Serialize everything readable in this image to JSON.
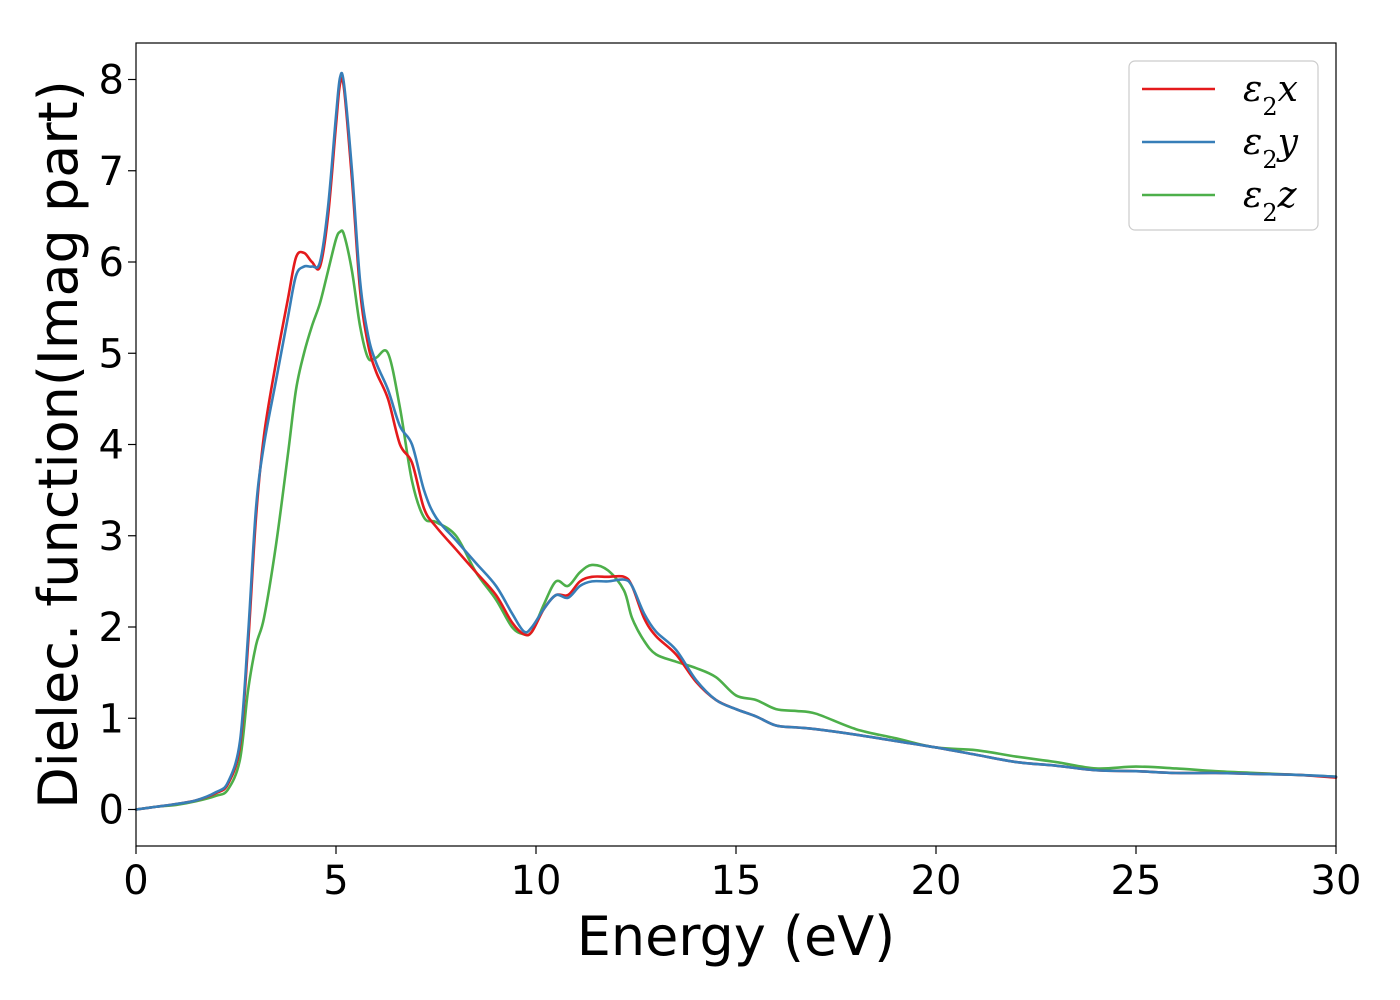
{
  "chart_data": {
    "type": "line",
    "title": "",
    "xlabel": "Energy (eV)",
    "ylabel": "Dielec. function(Imag part)",
    "xlim": [
      0,
      30
    ],
    "ylim": [
      -0.4,
      8.4
    ],
    "xticks": [
      0,
      5,
      10,
      15,
      20,
      25,
      30
    ],
    "yticks": [
      0,
      1,
      2,
      3,
      4,
      5,
      6,
      7,
      8
    ],
    "grid": false,
    "legend_position": "top-right",
    "series": [
      {
        "name": "ε2x",
        "legend_base": "ε",
        "legend_sub": "2",
        "legend_tail": "x",
        "color": "#e41a1c",
        "x": [
          0,
          0.5,
          1,
          1.5,
          2,
          2.3,
          2.6,
          2.8,
          3.0,
          3.2,
          3.5,
          3.8,
          4.0,
          4.2,
          4.4,
          4.6,
          4.8,
          5.0,
          5.1,
          5.2,
          5.4,
          5.6,
          5.8,
          6.0,
          6.3,
          6.6,
          6.9,
          7.2,
          7.5,
          8.0,
          8.5,
          9.0,
          9.4,
          9.7,
          9.9,
          10.2,
          10.5,
          10.8,
          11.1,
          11.4,
          11.8,
          12.2,
          12.4,
          12.7,
          13.0,
          13.5,
          14.0,
          14.5,
          15.0,
          15.5,
          16.0,
          16.5,
          17.0,
          18.0,
          19.0,
          20.0,
          21.0,
          22.0,
          23.0,
          24.0,
          25.0,
          26.0,
          27.0,
          28.0,
          29.0,
          30.0
        ],
        "y": [
          0.0,
          0.03,
          0.06,
          0.1,
          0.18,
          0.28,
          0.7,
          1.8,
          3.2,
          4.1,
          4.9,
          5.6,
          6.05,
          6.1,
          6.0,
          5.95,
          6.5,
          7.5,
          7.95,
          7.9,
          6.9,
          5.7,
          5.1,
          4.8,
          4.5,
          4.0,
          3.8,
          3.3,
          3.1,
          2.85,
          2.6,
          2.35,
          2.05,
          1.92,
          1.95,
          2.2,
          2.35,
          2.35,
          2.5,
          2.55,
          2.55,
          2.55,
          2.45,
          2.1,
          1.9,
          1.7,
          1.4,
          1.2,
          1.1,
          1.02,
          0.92,
          0.9,
          0.88,
          0.82,
          0.75,
          0.68,
          0.6,
          0.52,
          0.48,
          0.43,
          0.42,
          0.4,
          0.4,
          0.39,
          0.38,
          0.35
        ]
      },
      {
        "name": "ε2y",
        "legend_base": "ε",
        "legend_sub": "2",
        "legend_tail": "y",
        "color": "#377eb8",
        "x": [
          0,
          0.5,
          1,
          1.5,
          2,
          2.3,
          2.6,
          2.8,
          3.0,
          3.2,
          3.5,
          3.8,
          4.0,
          4.2,
          4.4,
          4.6,
          4.8,
          5.0,
          5.1,
          5.2,
          5.4,
          5.6,
          5.8,
          6.0,
          6.3,
          6.6,
          6.9,
          7.2,
          7.5,
          8.0,
          8.5,
          9.0,
          9.4,
          9.7,
          9.9,
          10.2,
          10.5,
          10.8,
          11.1,
          11.4,
          11.8,
          12.2,
          12.4,
          12.7,
          13.0,
          13.5,
          14.0,
          14.5,
          15.0,
          15.5,
          16.0,
          16.5,
          17.0,
          18.0,
          19.0,
          20.0,
          21.0,
          22.0,
          23.0,
          24.0,
          25.0,
          26.0,
          27.0,
          28.0,
          29.0,
          30.0
        ],
        "y": [
          0.0,
          0.03,
          0.06,
          0.1,
          0.19,
          0.3,
          0.75,
          1.9,
          3.3,
          4.0,
          4.7,
          5.4,
          5.85,
          5.95,
          5.95,
          6.0,
          6.6,
          7.6,
          8.02,
          7.95,
          7.0,
          5.8,
          5.2,
          4.9,
          4.6,
          4.2,
          4.0,
          3.5,
          3.2,
          2.95,
          2.7,
          2.45,
          2.15,
          1.95,
          2.0,
          2.2,
          2.35,
          2.32,
          2.45,
          2.5,
          2.5,
          2.52,
          2.45,
          2.15,
          1.95,
          1.75,
          1.42,
          1.2,
          1.1,
          1.02,
          0.92,
          0.9,
          0.88,
          0.82,
          0.75,
          0.68,
          0.6,
          0.52,
          0.48,
          0.43,
          0.42,
          0.4,
          0.4,
          0.39,
          0.38,
          0.36
        ]
      },
      {
        "name": "ε2z",
        "legend_base": "ε",
        "legend_sub": "2",
        "legend_tail": "z",
        "color": "#4daf4a",
        "x": [
          0,
          0.5,
          1,
          1.5,
          2,
          2.3,
          2.6,
          2.8,
          3.0,
          3.2,
          3.5,
          3.8,
          4.0,
          4.2,
          4.4,
          4.6,
          4.8,
          5.0,
          5.1,
          5.2,
          5.4,
          5.6,
          5.8,
          6.0,
          6.3,
          6.6,
          6.9,
          7.2,
          7.5,
          8.0,
          8.5,
          9.0,
          9.4,
          9.7,
          9.9,
          10.2,
          10.5,
          10.8,
          11.1,
          11.4,
          11.8,
          12.2,
          12.4,
          12.7,
          13.0,
          13.5,
          14.0,
          14.5,
          15.0,
          15.5,
          16.0,
          16.5,
          17.0,
          18.0,
          19.0,
          20.0,
          21.0,
          22.0,
          23.0,
          24.0,
          25.0,
          26.0,
          27.0,
          28.0,
          29.0,
          30.0
        ],
        "y": [
          0.0,
          0.03,
          0.05,
          0.09,
          0.15,
          0.22,
          0.55,
          1.3,
          1.8,
          2.1,
          2.9,
          3.9,
          4.6,
          5.0,
          5.3,
          5.55,
          5.9,
          6.25,
          6.33,
          6.3,
          5.9,
          5.3,
          4.95,
          4.95,
          5.0,
          4.4,
          3.6,
          3.2,
          3.15,
          3.0,
          2.6,
          2.3,
          2.0,
          1.92,
          1.95,
          2.25,
          2.5,
          2.45,
          2.6,
          2.68,
          2.62,
          2.4,
          2.1,
          1.85,
          1.7,
          1.62,
          1.55,
          1.45,
          1.25,
          1.2,
          1.1,
          1.08,
          1.05,
          0.88,
          0.78,
          0.68,
          0.65,
          0.58,
          0.52,
          0.45,
          0.47,
          0.45,
          0.42,
          0.4,
          0.38,
          0.36
        ]
      }
    ]
  }
}
